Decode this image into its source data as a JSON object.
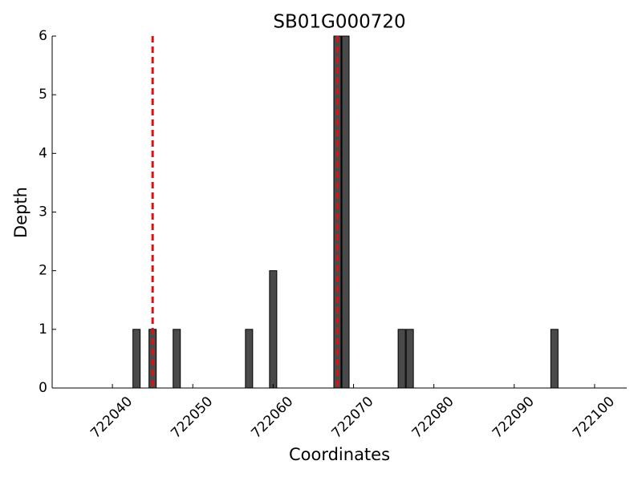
{
  "chart_data": {
    "type": "bar",
    "title": "SB01G000720",
    "x_label": "Coordinates",
    "y_label": "Depth",
    "x": [
      722043,
      722045,
      722048,
      722057,
      722060,
      722068,
      722069,
      722076,
      722077,
      722095
    ],
    "values": [
      1,
      1,
      1,
      1,
      2,
      6,
      6,
      1,
      1,
      1
    ],
    "color": "#4a4a4a",
    "edge_color": "#000000",
    "xlim": [
      722032.5,
      722104
    ],
    "xticks": [
      722040,
      722050,
      722060,
      722070,
      722080,
      722090,
      722100
    ],
    "ylim": [
      0,
      6
    ],
    "yticks": [
      0,
      1,
      2,
      3,
      4,
      5,
      6
    ],
    "vlines": [
      722045,
      722068
    ],
    "vline_color": "#dd1111"
  }
}
